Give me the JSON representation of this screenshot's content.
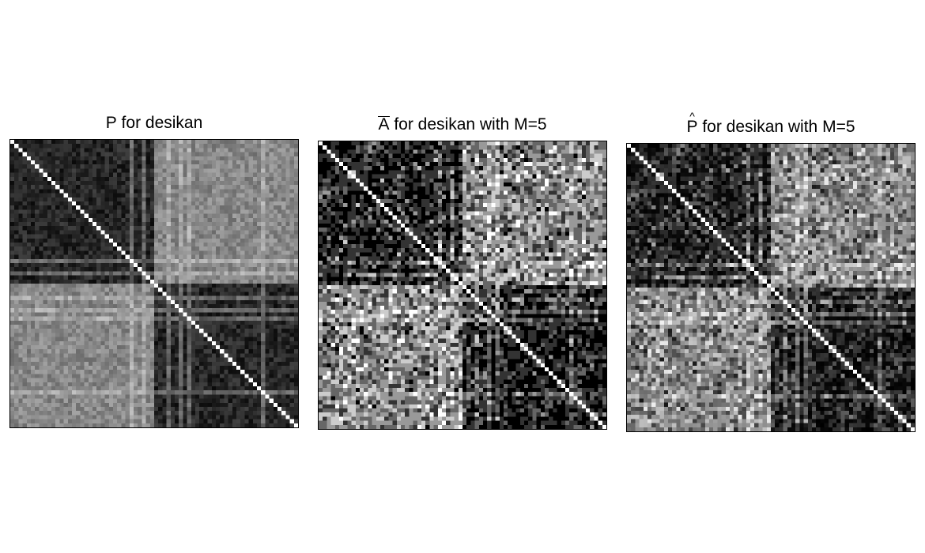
{
  "chart_data": [
    {
      "type": "heatmap",
      "title": {
        "symbol": "P",
        "accent": "",
        "text": " for desikan"
      },
      "atlas": "desikan",
      "n_nodes": 70,
      "value_range": [
        0,
        1
      ],
      "colormap": "grayscale: black = 0, white = 1",
      "diagonal": 1,
      "hemisphere_block_size": 35,
      "within_hemisphere_level": "dark (near 0.05-0.2)",
      "across_hemisphere_level": "mid-gray (near 0.5-0.6)",
      "seed": 11
    },
    {
      "type": "heatmap",
      "title": {
        "symbol": "A",
        "accent": "bar",
        "text": " for desikan with M=5"
      },
      "atlas": "desikan",
      "sample_size_M": 5,
      "n_nodes": 70,
      "value_range": [
        0,
        1
      ],
      "allowed_values": [
        0,
        0.2,
        0.4,
        0.6,
        0.8,
        1
      ],
      "colormap": "grayscale: black = 0, white = 1",
      "diagonal": 1,
      "seed": 23
    },
    {
      "type": "heatmap",
      "title": {
        "symbol": "P",
        "accent": "hat",
        "text": " for desikan with M=5"
      },
      "atlas": "desikan",
      "sample_size_M": 5,
      "n_nodes": 70,
      "value_range": [
        0,
        1
      ],
      "colormap": "grayscale: black = 0, white = 1",
      "diagonal": 1,
      "seed": 37
    }
  ]
}
